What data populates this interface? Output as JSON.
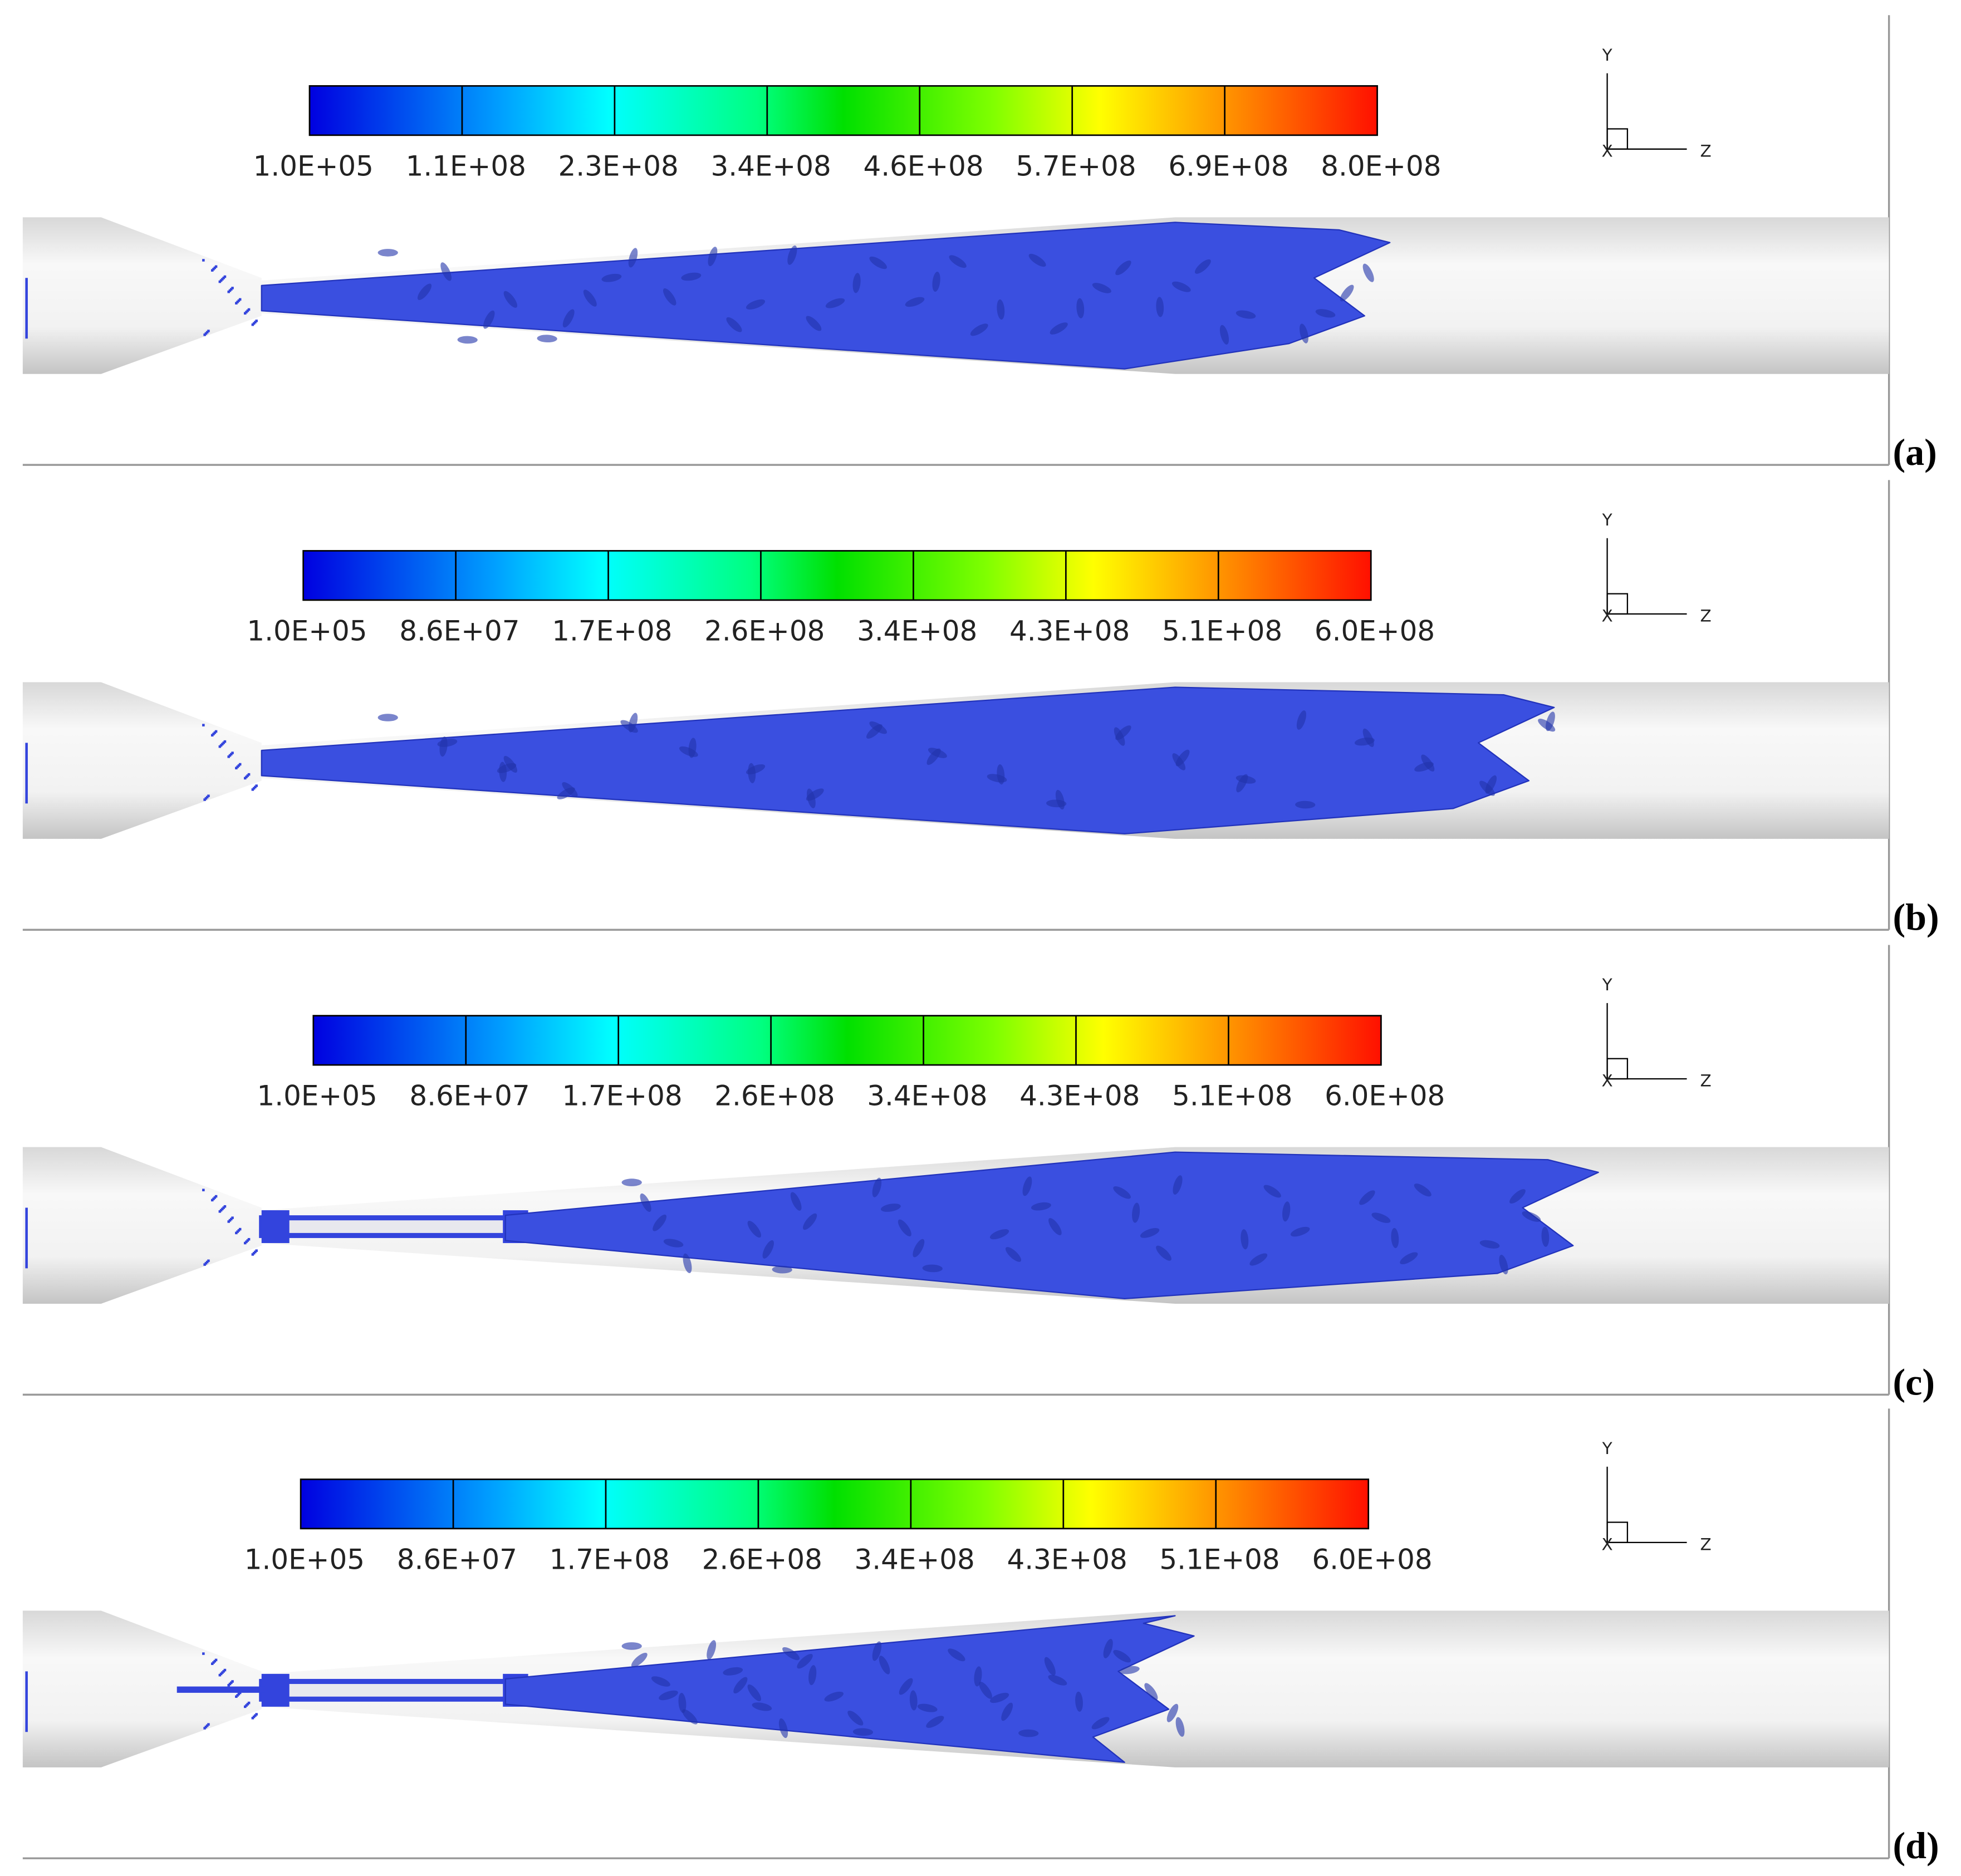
{
  "panels": [
    {
      "label": "(a)",
      "colorbar_labels": [
        "1.0E+05",
        "1.1E+08",
        "2.3E+08",
        "3.4E+08",
        "4.6E+08",
        "5.7E+08",
        "6.9E+08",
        "8.0E+08"
      ],
      "axes": {
        "y": "Y",
        "z": "Z",
        "x": "X"
      }
    },
    {
      "label": "(b)",
      "colorbar_labels": [
        "1.0E+05",
        "8.6E+07",
        "1.7E+08",
        "2.6E+08",
        "3.4E+08",
        "4.3E+08",
        "5.1E+08",
        "6.0E+08"
      ],
      "axes": {
        "y": "Y",
        "z": "Z",
        "x": "X"
      }
    },
    {
      "label": "(c)",
      "colorbar_labels": [
        "1.0E+05",
        "8.6E+07",
        "1.7E+08",
        "2.6E+08",
        "3.4E+08",
        "4.3E+08",
        "5.1E+08",
        "6.0E+08"
      ],
      "axes": {
        "y": "Y",
        "z": "Z",
        "x": "X"
      }
    },
    {
      "label": "(d)",
      "colorbar_labels": [
        "1.0E+05",
        "8.6E+07",
        "1.7E+08",
        "2.6E+08",
        "3.4E+08",
        "4.3E+08",
        "5.1E+08",
        "6.0E+08"
      ],
      "axes": {
        "y": "Y",
        "z": "Z",
        "x": "X"
      }
    }
  ]
}
